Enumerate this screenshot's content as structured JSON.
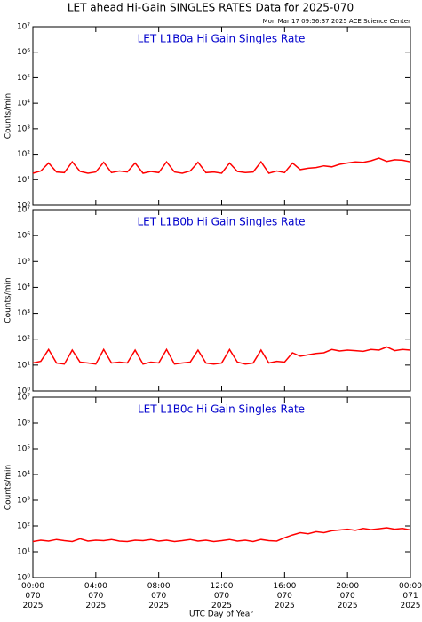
{
  "title": "LET ahead Hi-Gain SINGLES RATES Data for 2025-070",
  "subtitle": "Mon Mar 17 09:56:37 2025 ACE Science Center",
  "x_axis": {
    "label": "UTC Day of Year",
    "xlim": [
      0,
      24
    ],
    "xticks": [
      {
        "value": 0,
        "label": [
          "00:00",
          "070",
          "2025"
        ]
      },
      {
        "value": 4,
        "label": [
          "04:00",
          "070",
          "2025"
        ]
      },
      {
        "value": 8,
        "label": [
          "08:00",
          "070",
          "2025"
        ]
      },
      {
        "value": 12,
        "label": [
          "12:00",
          "070",
          "2025"
        ]
      },
      {
        "value": 16,
        "label": [
          "16:00",
          "070",
          "2025"
        ]
      },
      {
        "value": 20,
        "label": [
          "20:00",
          "070",
          "2025"
        ]
      },
      {
        "value": 24,
        "label": [
          "00:00",
          "071",
          "2025"
        ]
      }
    ],
    "x": [
      0,
      0.5,
      1,
      1.5,
      2,
      2.5,
      3,
      3.5,
      4,
      4.5,
      5,
      5.5,
      6,
      6.5,
      7,
      7.5,
      8,
      8.5,
      9,
      9.5,
      10,
      10.5,
      11,
      11.5,
      12,
      12.5,
      13,
      13.5,
      14,
      14.5,
      15,
      15.5,
      16,
      16.5,
      17,
      17.5,
      18,
      18.5,
      19,
      19.5,
      20,
      20.5,
      21,
      21.5,
      22,
      22.5,
      23,
      23.5,
      24
    ]
  },
  "chart_data": [
    {
      "type": "line",
      "title": "LET L1B0a Hi Gain Singles Rate",
      "ylabel": "Counts/min",
      "log": true,
      "color": "#ff0000",
      "ylim": [
        1,
        10000000
      ],
      "yticks": [
        {
          "value": 1,
          "label": "10⁰"
        },
        {
          "value": 10,
          "label": "10¹"
        },
        {
          "value": 100,
          "label": "10²"
        },
        {
          "value": 1000,
          "label": "10³"
        },
        {
          "value": 10000,
          "label": "10⁴"
        },
        {
          "value": 100000,
          "label": "10⁵"
        },
        {
          "value": 1000000,
          "label": "10⁶"
        },
        {
          "value": 10000000,
          "label": "10⁷"
        }
      ],
      "values": [
        18,
        22,
        45,
        20,
        19,
        50,
        21,
        18,
        20,
        48,
        19,
        22,
        20,
        45,
        18,
        21,
        19,
        50,
        20,
        18,
        22,
        48,
        19,
        20,
        18,
        45,
        21,
        19,
        20,
        50,
        18,
        22,
        19,
        45,
        25,
        28,
        30,
        35,
        32,
        40,
        45,
        50,
        48,
        55,
        70,
        52,
        60,
        58,
        50
      ]
    },
    {
      "type": "line",
      "title": "LET L1B0b Hi Gain Singles Rate",
      "ylabel": "Counts/min",
      "log": true,
      "color": "#ff0000",
      "ylim": [
        1,
        10000000
      ],
      "yticks": [
        {
          "value": 1,
          "label": "10⁰"
        },
        {
          "value": 10,
          "label": "10¹"
        },
        {
          "value": 100,
          "label": "10²"
        },
        {
          "value": 1000,
          "label": "10³"
        },
        {
          "value": 10000,
          "label": "10⁴"
        },
        {
          "value": 100000,
          "label": "10⁵"
        },
        {
          "value": 1000000,
          "label": "10⁶"
        },
        {
          "value": 10000000,
          "label": "10⁷"
        }
      ],
      "values": [
        12,
        14,
        40,
        12,
        11,
        38,
        13,
        12,
        11,
        40,
        12,
        13,
        12,
        38,
        11,
        13,
        12,
        40,
        11,
        12,
        13,
        38,
        12,
        11,
        12,
        40,
        13,
        11,
        12,
        38,
        12,
        14,
        13,
        30,
        22,
        25,
        28,
        30,
        40,
        35,
        38,
        36,
        34,
        40,
        38,
        50,
        36,
        40,
        38
      ]
    },
    {
      "type": "line",
      "title": "LET L1B0c Hi Gain Singles Rate",
      "ylabel": "Counts/min",
      "log": true,
      "color": "#ff0000",
      "ylim": [
        1,
        10000000
      ],
      "yticks": [
        {
          "value": 1,
          "label": "10⁰"
        },
        {
          "value": 10,
          "label": "10¹"
        },
        {
          "value": 100,
          "label": "10²"
        },
        {
          "value": 1000,
          "label": "10³"
        },
        {
          "value": 10000,
          "label": "10⁴"
        },
        {
          "value": 100000,
          "label": "10⁵"
        },
        {
          "value": 1000000,
          "label": "10⁶"
        },
        {
          "value": 10000000,
          "label": "10⁷"
        }
      ],
      "values": [
        25,
        28,
        26,
        30,
        27,
        25,
        32,
        26,
        28,
        27,
        30,
        26,
        25,
        28,
        27,
        30,
        26,
        28,
        25,
        27,
        30,
        26,
        28,
        25,
        27,
        30,
        26,
        28,
        25,
        30,
        27,
        26,
        35,
        45,
        55,
        50,
        60,
        55,
        65,
        70,
        75,
        68,
        80,
        72,
        78,
        85,
        75,
        80,
        70
      ]
    }
  ]
}
